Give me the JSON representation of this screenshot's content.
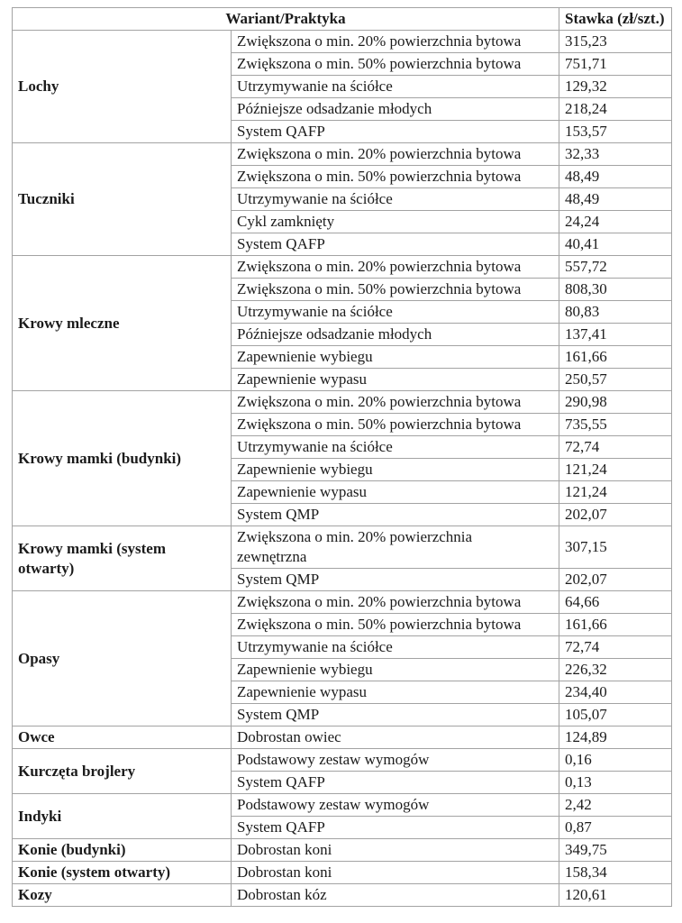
{
  "table": {
    "header": {
      "variant_practice": "Wariant/Praktyka",
      "rate": "Stawka (zł/szt.)"
    },
    "groups": [
      {
        "category": "Lochy",
        "rows": [
          {
            "practice": "Zwiększona o min. 20% powierzchnia bytowa",
            "rate": "315,23"
          },
          {
            "practice": "Zwiększona o min. 50% powierzchnia bytowa",
            "rate": "751,71"
          },
          {
            "practice": "Utrzymywanie na ściółce",
            "rate": "129,32"
          },
          {
            "practice": "Późniejsze odsadzanie młodych",
            "rate": "218,24"
          },
          {
            "practice": "System QAFP",
            "rate": "153,57"
          }
        ]
      },
      {
        "category": "Tuczniki",
        "rows": [
          {
            "practice": "Zwiększona o min. 20% powierzchnia bytowa",
            "rate": "32,33"
          },
          {
            "practice": "Zwiększona o min. 50% powierzchnia bytowa",
            "rate": "48,49"
          },
          {
            "practice": "Utrzymywanie na ściółce",
            "rate": "48,49"
          },
          {
            "practice": "Cykl zamknięty",
            "rate": "24,24"
          },
          {
            "practice": "System QAFP",
            "rate": "40,41"
          }
        ]
      },
      {
        "category": "Krowy mleczne",
        "rows": [
          {
            "practice": "Zwiększona o min. 20% powierzchnia bytowa",
            "rate": "557,72"
          },
          {
            "practice": "Zwiększona o min. 50% powierzchnia bytowa",
            "rate": "808,30"
          },
          {
            "practice": "Utrzymywanie na ściółce",
            "rate": "80,83"
          },
          {
            "practice": "Późniejsze odsadzanie młodych",
            "rate": "137,41"
          },
          {
            "practice": "Zapewnienie wybiegu",
            "rate": "161,66"
          },
          {
            "practice": "Zapewnienie wypasu",
            "rate": "250,57"
          }
        ]
      },
      {
        "category": "Krowy mamki (budynki)",
        "rows": [
          {
            "practice": "Zwiększona o min. 20% powierzchnia bytowa",
            "rate": "290,98"
          },
          {
            "practice": "Zwiększona o min. 50% powierzchnia bytowa",
            "rate": "735,55"
          },
          {
            "practice": "Utrzymywanie na ściółce",
            "rate": "72,74"
          },
          {
            "practice": "Zapewnienie wybiegu",
            "rate": "121,24"
          },
          {
            "practice": "Zapewnienie wypasu",
            "rate": "121,24"
          },
          {
            "practice": "System QMP",
            "rate": "202,07"
          }
        ]
      },
      {
        "category": "Krowy mamki (system\notwarty)",
        "rows": [
          {
            "practice": "Zwiększona o min. 20% powierzchnia\nzewnętrzna",
            "rate": "307,15"
          },
          {
            "practice": "System QMP",
            "rate": "202,07"
          }
        ]
      },
      {
        "category": "Opasy",
        "rows": [
          {
            "practice": "Zwiększona o min. 20% powierzchnia bytowa",
            "rate": "64,66"
          },
          {
            "practice": "Zwiększona o min. 50% powierzchnia bytowa",
            "rate": "161,66"
          },
          {
            "practice": "Utrzymywanie na ściółce",
            "rate": "72,74"
          },
          {
            "practice": "Zapewnienie wybiegu",
            "rate": "226,32"
          },
          {
            "practice": "Zapewnienie wypasu",
            "rate": "234,40"
          },
          {
            "practice": "System QMP",
            "rate": "105,07"
          }
        ]
      },
      {
        "category": "Owce",
        "rows": [
          {
            "practice": "Dobrostan owiec",
            "rate": "124,89"
          }
        ]
      },
      {
        "category": "Kurczęta brojlery",
        "rows": [
          {
            "practice": "Podstawowy zestaw wymogów",
            "rate": "0,16"
          },
          {
            "practice": "System QAFP",
            "rate": "0,13"
          }
        ]
      },
      {
        "category": "Indyki",
        "rows": [
          {
            "practice": "Podstawowy zestaw wymogów",
            "rate": "2,42"
          },
          {
            "practice": "System QAFP",
            "rate": "0,87"
          }
        ]
      },
      {
        "category": "Konie (budynki)",
        "rows": [
          {
            "practice": "Dobrostan koni",
            "rate": "349,75"
          }
        ]
      },
      {
        "category": "Konie (system otwarty)",
        "rows": [
          {
            "practice": "Dobrostan koni",
            "rate": "158,34"
          }
        ]
      },
      {
        "category": "Kozy",
        "rows": [
          {
            "practice": "Dobrostan kóz",
            "rate": "120,61"
          }
        ]
      }
    ]
  }
}
